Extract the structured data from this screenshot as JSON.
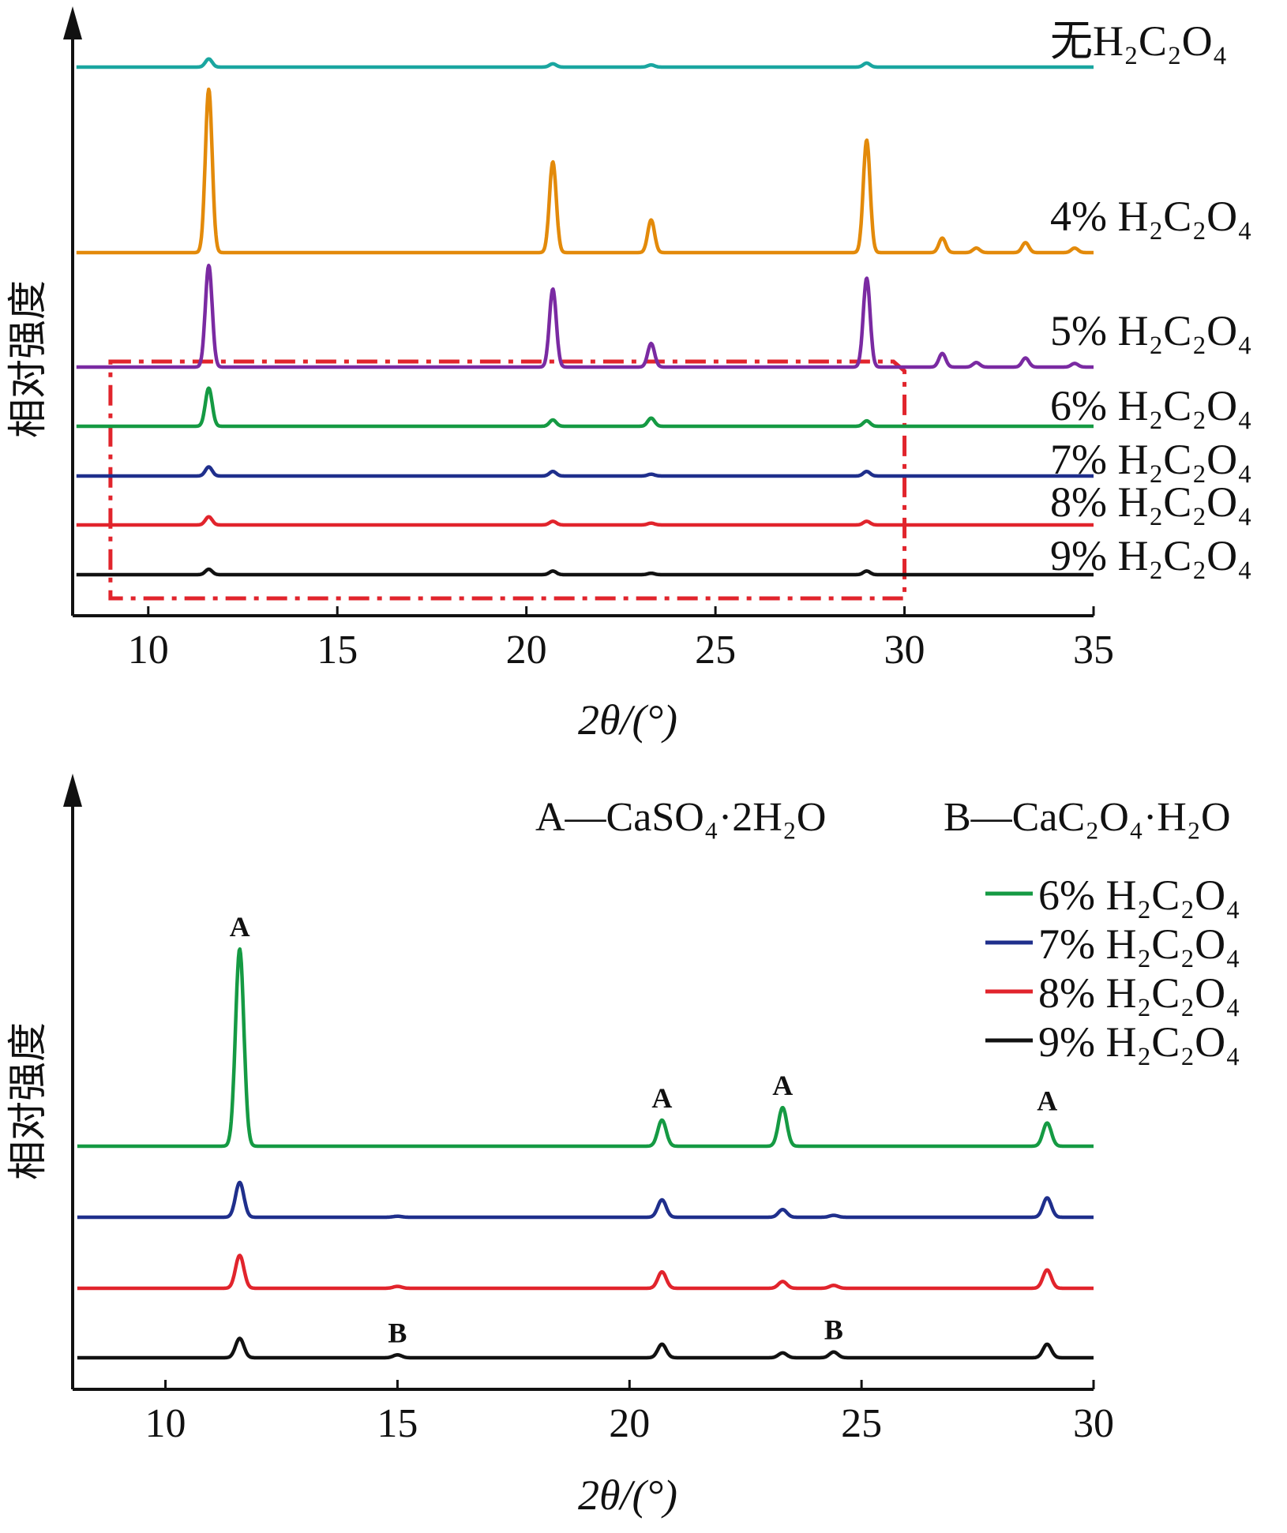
{
  "chart_data": [
    {
      "type": "line",
      "title": "",
      "xlabel": "2θ/(°)",
      "ylabel": "相对强度",
      "xlim": [
        8,
        35
      ],
      "xticks": [
        10,
        15,
        20,
        25,
        30,
        35
      ],
      "grid": false,
      "series_labels_position": "right",
      "series": [
        {
          "name": "无H₂C₂O₄",
          "color": "#1aa6a0",
          "baseline": 1.0,
          "peaks": [
            [
              11.6,
              0.45
            ],
            [
              20.7,
              0.18
            ],
            [
              23.3,
              0.12
            ],
            [
              29.0,
              0.22
            ]
          ]
        },
        {
          "name": "4% H₂C₂O₄",
          "color": "#e38a0a",
          "baseline": 1.0,
          "peaks": [
            [
              11.6,
              9.0
            ],
            [
              20.7,
              5.0
            ],
            [
              23.3,
              1.8
            ],
            [
              29.0,
              6.2
            ],
            [
              31.0,
              0.8
            ],
            [
              31.9,
              0.25
            ],
            [
              33.2,
              0.55
            ],
            [
              34.5,
              0.25
            ]
          ]
        },
        {
          "name": "5% H₂C₂O₄",
          "color": "#7a2aa2",
          "baseline": 1.0,
          "peaks": [
            [
              11.6,
              5.6
            ],
            [
              20.7,
              4.3
            ],
            [
              23.3,
              1.3
            ],
            [
              29.0,
              4.9
            ],
            [
              31.0,
              0.75
            ],
            [
              31.9,
              0.25
            ],
            [
              33.2,
              0.5
            ],
            [
              34.5,
              0.2
            ]
          ]
        },
        {
          "name": "6% H₂C₂O₄",
          "color": "#159a43",
          "baseline": 1.0,
          "peaks": [
            [
              11.6,
              2.1
            ],
            [
              20.7,
              0.35
            ],
            [
              23.3,
              0.45
            ],
            [
              29.0,
              0.3
            ]
          ]
        },
        {
          "name": "7% H₂C₂O₄",
          "color": "#1f2f8c",
          "baseline": 1.0,
          "peaks": [
            [
              11.6,
              0.5
            ],
            [
              20.7,
              0.25
            ],
            [
              23.3,
              0.1
            ],
            [
              29.0,
              0.25
            ]
          ]
        },
        {
          "name": "8% H₂C₂O₄",
          "color": "#e1242c",
          "baseline": 1.0,
          "peaks": [
            [
              11.6,
              0.45
            ],
            [
              20.7,
              0.2
            ],
            [
              23.3,
              0.1
            ],
            [
              29.0,
              0.2
            ]
          ]
        },
        {
          "name": "9% H₂C₂O₄",
          "color": "#111111",
          "baseline": 1.0,
          "peaks": [
            [
              11.6,
              0.3
            ],
            [
              20.7,
              0.2
            ],
            [
              23.3,
              0.08
            ],
            [
              29.0,
              0.2
            ]
          ]
        }
      ],
      "zoom_box": {
        "xrange": [
          9,
          30
        ],
        "color": "#e1242c",
        "style": "dash-dot"
      }
    },
    {
      "type": "line",
      "title": "",
      "xlabel": "2θ/(°)",
      "ylabel": "相对强度",
      "xlim": [
        8,
        30
      ],
      "xticks": [
        10,
        15,
        20,
        25,
        30
      ],
      "grid": false,
      "legend_position": "top-right",
      "phase_legend": {
        "A": "A—CaSO₄·2H₂O",
        "B": "B—CaC₂O₄·H₂O"
      },
      "series": [
        {
          "name": "6% H₂C₂O₄",
          "color": "#159a43",
          "baseline": 1.0,
          "peaks": [
            [
              11.6,
              10.2
            ],
            [
              20.7,
              1.35
            ],
            [
              23.3,
              2.0
            ],
            [
              29.0,
              1.2
            ]
          ]
        },
        {
          "name": "7% H₂C₂O₄",
          "color": "#1f2f8c",
          "baseline": 1.0,
          "peaks": [
            [
              11.6,
              1.8
            ],
            [
              15.0,
              0.05
            ],
            [
              20.7,
              0.9
            ],
            [
              23.3,
              0.4
            ],
            [
              24.4,
              0.1
            ],
            [
              29.0,
              1.0
            ]
          ]
        },
        {
          "name": "8% H₂C₂O₄",
          "color": "#e1242c",
          "baseline": 1.0,
          "peaks": [
            [
              11.6,
              1.7
            ],
            [
              15.0,
              0.1
            ],
            [
              20.7,
              0.85
            ],
            [
              23.3,
              0.35
            ],
            [
              24.4,
              0.15
            ],
            [
              29.0,
              0.95
            ]
          ]
        },
        {
          "name": "9% H₂C₂O₄",
          "color": "#111111",
          "baseline": 1.0,
          "peaks": [
            [
              11.6,
              1.0
            ],
            [
              15.0,
              0.15
            ],
            [
              20.7,
              0.7
            ],
            [
              23.3,
              0.25
            ],
            [
              24.4,
              0.3
            ],
            [
              29.0,
              0.7
            ]
          ]
        }
      ],
      "annotations": [
        {
          "text": "A",
          "x": 11.6,
          "series": "6% H₂C₂O₄"
        },
        {
          "text": "A",
          "x": 20.7,
          "series": "6% H₂C₂O₄"
        },
        {
          "text": "A",
          "x": 23.3,
          "series": "6% H₂C₂O₄"
        },
        {
          "text": "A",
          "x": 29.0,
          "series": "6% H₂C₂O₄"
        },
        {
          "text": "B",
          "x": 15.0,
          "series": "9% H₂C₂O₄"
        },
        {
          "text": "B",
          "x": 24.4,
          "series": "9% H₂C₂O₄"
        }
      ]
    }
  ]
}
